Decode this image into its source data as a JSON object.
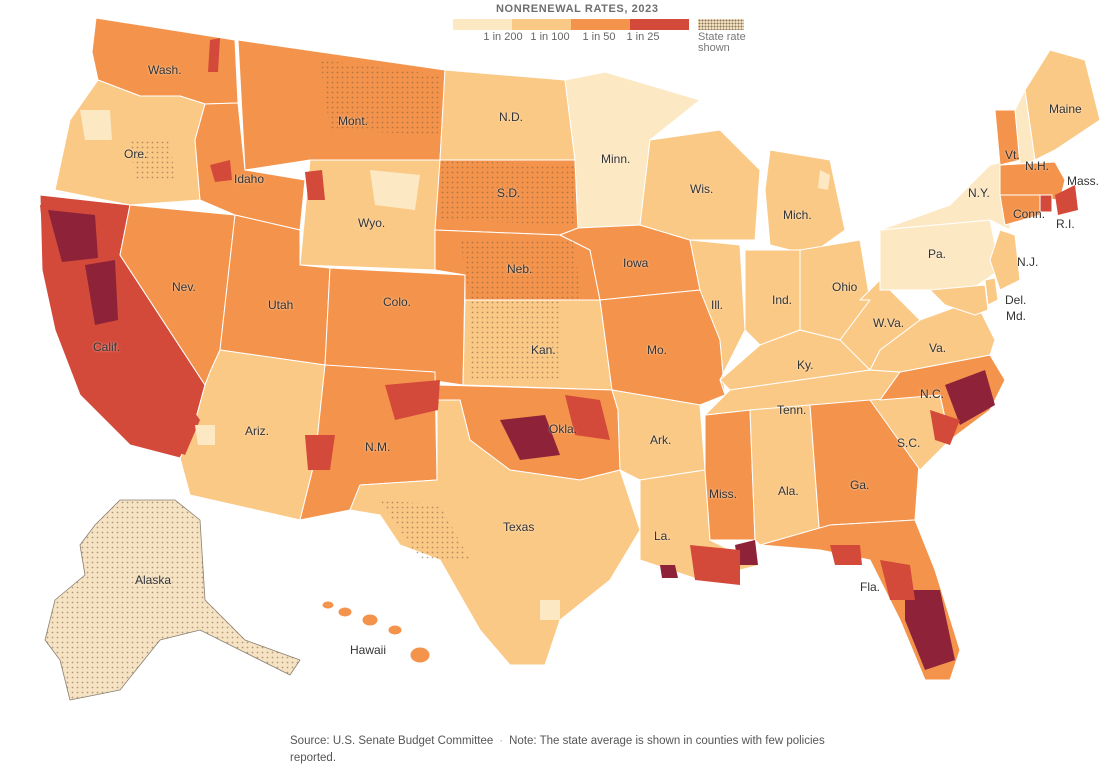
{
  "legend": {
    "title": "NONRENEWAL RATES, 2023",
    "colors": [
      "#fde8c4",
      "#fbc986",
      "#f4944c",
      "#d44a3a",
      "#8e2238"
    ],
    "ticks": [
      "1 in 200",
      "1 in 100",
      "1 in 50",
      "1 in 25"
    ],
    "dot_label": "State rate shown"
  },
  "map": {
    "state_labels": [
      {
        "id": "wa",
        "text": "Wash."
      },
      {
        "id": "or",
        "text": "Ore."
      },
      {
        "id": "ca",
        "text": "Calif."
      },
      {
        "id": "nv",
        "text": "Nev."
      },
      {
        "id": "id",
        "text": "Idaho"
      },
      {
        "id": "mt",
        "text": "Mont."
      },
      {
        "id": "wy",
        "text": "Wyo."
      },
      {
        "id": "ut",
        "text": "Utah"
      },
      {
        "id": "az",
        "text": "Ariz."
      },
      {
        "id": "co",
        "text": "Colo."
      },
      {
        "id": "nm",
        "text": "N.M."
      },
      {
        "id": "nd",
        "text": "N.D."
      },
      {
        "id": "sd",
        "text": "S.D."
      },
      {
        "id": "ne",
        "text": "Neb."
      },
      {
        "id": "ks",
        "text": "Kan."
      },
      {
        "id": "ok",
        "text": "Okla."
      },
      {
        "id": "tx",
        "text": "Texas"
      },
      {
        "id": "mn",
        "text": "Minn."
      },
      {
        "id": "ia",
        "text": "Iowa"
      },
      {
        "id": "mo",
        "text": "Mo."
      },
      {
        "id": "ar",
        "text": "Ark."
      },
      {
        "id": "la",
        "text": "La."
      },
      {
        "id": "wi",
        "text": "Wis."
      },
      {
        "id": "il",
        "text": "Ill."
      },
      {
        "id": "ms",
        "text": "Miss."
      },
      {
        "id": "mi",
        "text": "Mich."
      },
      {
        "id": "in",
        "text": "Ind."
      },
      {
        "id": "oh",
        "text": "Ohio"
      },
      {
        "id": "ky",
        "text": "Ky."
      },
      {
        "id": "tn",
        "text": "Tenn."
      },
      {
        "id": "al",
        "text": "Ala."
      },
      {
        "id": "ga",
        "text": "Ga."
      },
      {
        "id": "fl",
        "text": "Fla."
      },
      {
        "id": "sc",
        "text": "S.C."
      },
      {
        "id": "nc",
        "text": "N.C."
      },
      {
        "id": "va",
        "text": "Va."
      },
      {
        "id": "wv",
        "text": "W.Va."
      },
      {
        "id": "pa",
        "text": "Pa."
      },
      {
        "id": "ny",
        "text": "N.Y."
      },
      {
        "id": "vt",
        "text": "Vt."
      },
      {
        "id": "nh",
        "text": "N.H."
      },
      {
        "id": "me",
        "text": "Maine"
      },
      {
        "id": "ma",
        "text": "Mass."
      },
      {
        "id": "ct",
        "text": "Conn."
      },
      {
        "id": "ri",
        "text": "R.I."
      },
      {
        "id": "nj",
        "text": "N.J."
      },
      {
        "id": "de",
        "text": "Del."
      },
      {
        "id": "md",
        "text": "Md."
      },
      {
        "id": "ak",
        "text": "Alaska"
      },
      {
        "id": "hi",
        "text": "Hawaii"
      }
    ]
  },
  "footer": {
    "source": "Source: U.S. Senate Budget Committee",
    "note": "Note: The state average is shown in counties with few policies reported."
  }
}
